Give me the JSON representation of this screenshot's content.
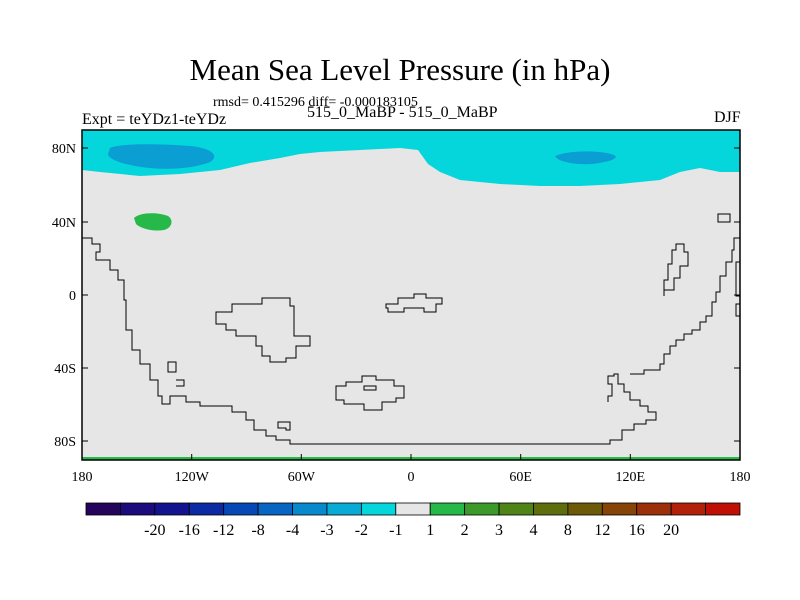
{
  "title": "Mean Sea Level Pressure (in hPa)",
  "stats": "rmsd= 0.415296 diff= -0.000183105",
  "left_label": "Expt = teYDz1-teYDz",
  "center_label": "515_0_MaBP - 515_0_MaBP",
  "right_label": "DJF",
  "axes": {
    "y_ticks": [
      "80N",
      "40N",
      "0",
      "40S",
      "80S"
    ],
    "x_ticks": [
      "180",
      "120W",
      "60W",
      "0",
      "60E",
      "120E",
      "180"
    ]
  },
  "colors": {
    "background_field": "#e6e6e6",
    "cyan_band": "#05d6dc",
    "blue_low": "#0a9ed2",
    "green_high": "#27b84a",
    "coastline": "#000000"
  },
  "colorbar": {
    "colors": [
      "#25045c",
      "#1c0b7c",
      "#13138f",
      "#0c2aa4",
      "#0848b6",
      "#0766c4",
      "#0888cd",
      "#0aaad6",
      "#05d6dc",
      "#e6e6e6",
      "#27b84a",
      "#3c9a2a",
      "#4f8418",
      "#5e6e0c",
      "#6d5a08",
      "#864408",
      "#9b300a",
      "#b3200a",
      "#c01006"
    ],
    "labels": [
      "-20",
      "-16",
      "-12",
      "-8",
      "-4",
      "-3",
      "-2",
      "-1",
      "1",
      "2",
      "3",
      "4",
      "8",
      "12",
      "16",
      "20"
    ]
  }
}
